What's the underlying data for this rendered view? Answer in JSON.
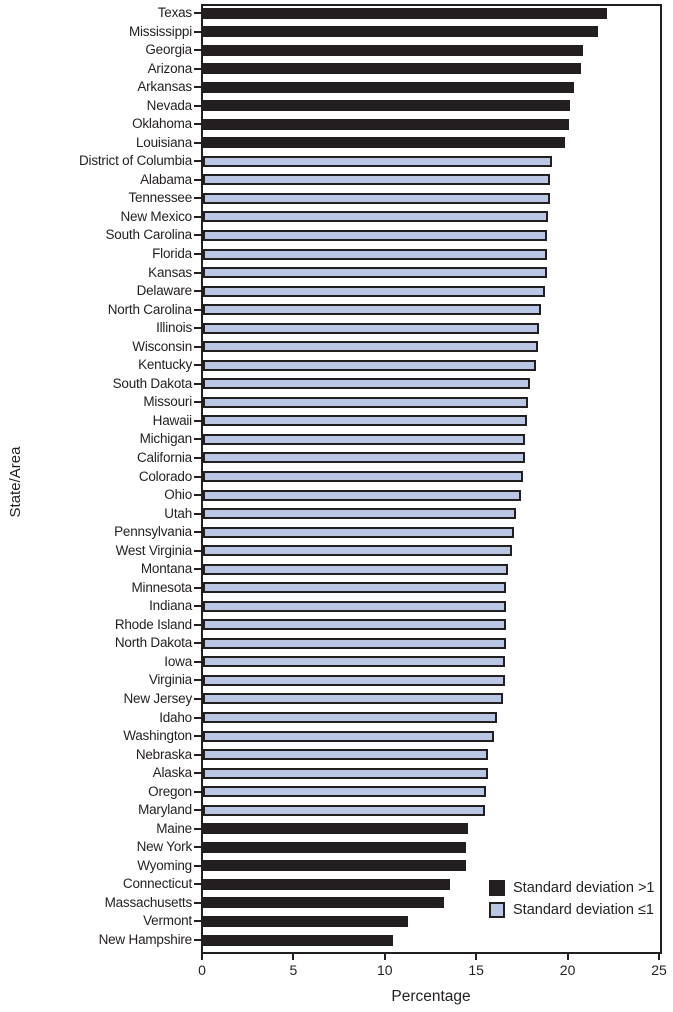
{
  "chart_data": {
    "type": "bar",
    "orientation": "horizontal",
    "xlabel": "Percentage",
    "ylabel": "State/Area",
    "xlim": [
      0,
      25
    ],
    "xticks": [
      0,
      5,
      10,
      15,
      20,
      25
    ],
    "grid": false,
    "legend_position": "lower-right-inside",
    "legend": [
      {
        "label": "Standard deviation >1",
        "group": "dark"
      },
      {
        "label": "Standard deviation ≤1",
        "group": "light"
      }
    ],
    "colors": {
      "dark_bar": "#231f20",
      "light_bar_fill": "#b9c7e4",
      "light_bar_border": "#231f20"
    },
    "series": [
      {
        "state": "Texas",
        "value": 22.1,
        "group": "dark"
      },
      {
        "state": "Mississippi",
        "value": 21.6,
        "group": "dark"
      },
      {
        "state": "Georgia",
        "value": 20.8,
        "group": "dark"
      },
      {
        "state": "Arizona",
        "value": 20.7,
        "group": "dark"
      },
      {
        "state": "Arkansas",
        "value": 20.3,
        "group": "dark"
      },
      {
        "state": "Nevada",
        "value": 20.1,
        "group": "dark"
      },
      {
        "state": "Oklahoma",
        "value": 20.0,
        "group": "dark"
      },
      {
        "state": "Louisiana",
        "value": 19.8,
        "group": "dark"
      },
      {
        "state": "District of Columbia",
        "value": 19.1,
        "group": "light"
      },
      {
        "state": "Alabama",
        "value": 19.0,
        "group": "light"
      },
      {
        "state": "Tennessee",
        "value": 19.0,
        "group": "light"
      },
      {
        "state": "New Mexico",
        "value": 18.9,
        "group": "light"
      },
      {
        "state": "South Carolina",
        "value": 18.8,
        "group": "light"
      },
      {
        "state": "Florida",
        "value": 18.8,
        "group": "light"
      },
      {
        "state": "Kansas",
        "value": 18.8,
        "group": "light"
      },
      {
        "state": "Delaware",
        "value": 18.7,
        "group": "light"
      },
      {
        "state": "North Carolina",
        "value": 18.5,
        "group": "light"
      },
      {
        "state": "Illinois",
        "value": 18.4,
        "group": "light"
      },
      {
        "state": "Wisconsin",
        "value": 18.3,
        "group": "light"
      },
      {
        "state": "Kentucky",
        "value": 18.2,
        "group": "light"
      },
      {
        "state": "South Dakota",
        "value": 17.9,
        "group": "light"
      },
      {
        "state": "Missouri",
        "value": 17.8,
        "group": "light"
      },
      {
        "state": "Hawaii",
        "value": 17.7,
        "group": "light"
      },
      {
        "state": "Michigan",
        "value": 17.6,
        "group": "light"
      },
      {
        "state": "California",
        "value": 17.6,
        "group": "light"
      },
      {
        "state": "Colorado",
        "value": 17.5,
        "group": "light"
      },
      {
        "state": "Ohio",
        "value": 17.4,
        "group": "light"
      },
      {
        "state": "Utah",
        "value": 17.1,
        "group": "light"
      },
      {
        "state": "Pennsylvania",
        "value": 17.0,
        "group": "light"
      },
      {
        "state": "West Virginia",
        "value": 16.9,
        "group": "light"
      },
      {
        "state": "Montana",
        "value": 16.7,
        "group": "light"
      },
      {
        "state": "Minnesota",
        "value": 16.6,
        "group": "light"
      },
      {
        "state": "Indiana",
        "value": 16.6,
        "group": "light"
      },
      {
        "state": "Rhode Island",
        "value": 16.6,
        "group": "light"
      },
      {
        "state": "North Dakota",
        "value": 16.6,
        "group": "light"
      },
      {
        "state": "Iowa",
        "value": 16.5,
        "group": "light"
      },
      {
        "state": "Virginia",
        "value": 16.5,
        "group": "light"
      },
      {
        "state": "New Jersey",
        "value": 16.4,
        "group": "light"
      },
      {
        "state": "Idaho",
        "value": 16.1,
        "group": "light"
      },
      {
        "state": "Washington",
        "value": 15.9,
        "group": "light"
      },
      {
        "state": "Nebraska",
        "value": 15.6,
        "group": "light"
      },
      {
        "state": "Alaska",
        "value": 15.6,
        "group": "light"
      },
      {
        "state": "Oregon",
        "value": 15.5,
        "group": "light"
      },
      {
        "state": "Maryland",
        "value": 15.4,
        "group": "light"
      },
      {
        "state": "Maine",
        "value": 14.5,
        "group": "dark"
      },
      {
        "state": "New York",
        "value": 14.4,
        "group": "dark"
      },
      {
        "state": "Wyoming",
        "value": 14.4,
        "group": "dark"
      },
      {
        "state": "Connecticut",
        "value": 13.5,
        "group": "dark"
      },
      {
        "state": "Massachusetts",
        "value": 13.2,
        "group": "dark"
      },
      {
        "state": "Vermont",
        "value": 11.2,
        "group": "dark"
      },
      {
        "state": "New Hampshire",
        "value": 10.4,
        "group": "dark"
      }
    ]
  }
}
